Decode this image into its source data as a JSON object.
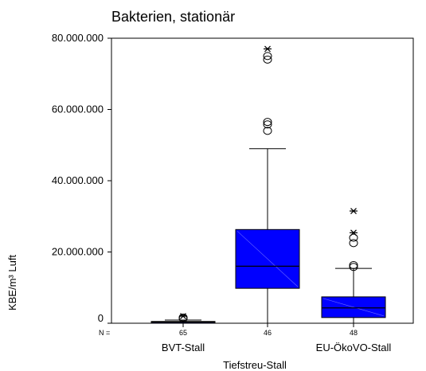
{
  "chart_data": {
    "type": "boxplot",
    "title": "Bakterien, stationär",
    "xlabel": "Tiefstreu-Stall",
    "ylabel": "KBE/m³ Luft",
    "ylim": [
      0,
      80000000
    ],
    "yticks": [
      0,
      20000000,
      40000000,
      60000000,
      80000000
    ],
    "ytick_labels": [
      "0",
      "20.000.000",
      "40.000.000",
      "60.000.000",
      "80.000.000"
    ],
    "n_prefix": "N =",
    "x_tick_labels": [
      "BVT-Stall",
      "",
      "EU-ÖkoVO-Stall"
    ],
    "groups": [
      {
        "n": "65",
        "min": 0,
        "q1": 100000,
        "median": 300000,
        "q3": 500000,
        "max": 900000,
        "outliers": [
          1300000,
          1600000
        ],
        "extremes": [
          2000000
        ]
      },
      {
        "n": "46",
        "min": 0,
        "q1": 9800000,
        "median": 16000000,
        "q3": 26300000,
        "max": 49000000,
        "outliers": [
          54000000,
          55800000,
          56500000,
          74000000,
          75000000
        ],
        "extremes": [
          77000000
        ]
      },
      {
        "n": "48",
        "min": 0,
        "q1": 1600000,
        "median": 4300000,
        "q3": 7400000,
        "max": 15400000,
        "outliers": [
          15800000,
          16300000,
          22500000,
          24000000
        ],
        "extremes": [
          25400000,
          31500000
        ]
      }
    ],
    "box_color": "#0000ff",
    "grid": false
  }
}
